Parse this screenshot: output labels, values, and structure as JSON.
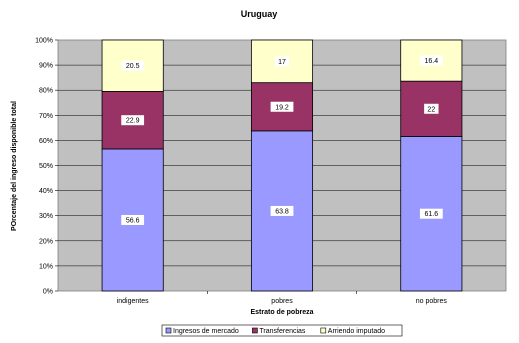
{
  "chart_data": {
    "type": "bar",
    "stacked": true,
    "title": "Uruguay",
    "xlabel": "Estrato de pobreza",
    "ylabel": "POrcentaje del ingreso disponible total",
    "categories": [
      "indigentes",
      "pobres",
      "no pobres"
    ],
    "ylim": [
      0,
      100
    ],
    "yticks": [
      "0%",
      "10%",
      "20%",
      "30%",
      "40%",
      "50%",
      "60%",
      "70%",
      "80%",
      "90%",
      "100%"
    ],
    "grid": true,
    "legend_position": "bottom",
    "series": [
      {
        "name": "Ingresos de mercado",
        "values": [
          56.6,
          63.8,
          61.6
        ],
        "labels": [
          "56.6",
          "63.8",
          "61.6"
        ],
        "color": "#9999ff"
      },
      {
        "name": "Transferencias",
        "values": [
          22.9,
          19.2,
          22
        ],
        "labels": [
          "22.9",
          "19.2",
          "22"
        ],
        "color": "#993366"
      },
      {
        "name": "Arriendo imputado",
        "values": [
          20.5,
          17,
          16.4
        ],
        "labels": [
          "20.5",
          "17",
          "16.4"
        ],
        "color": "#ffffcc"
      }
    ],
    "plot_background": "#c0c0c0"
  }
}
